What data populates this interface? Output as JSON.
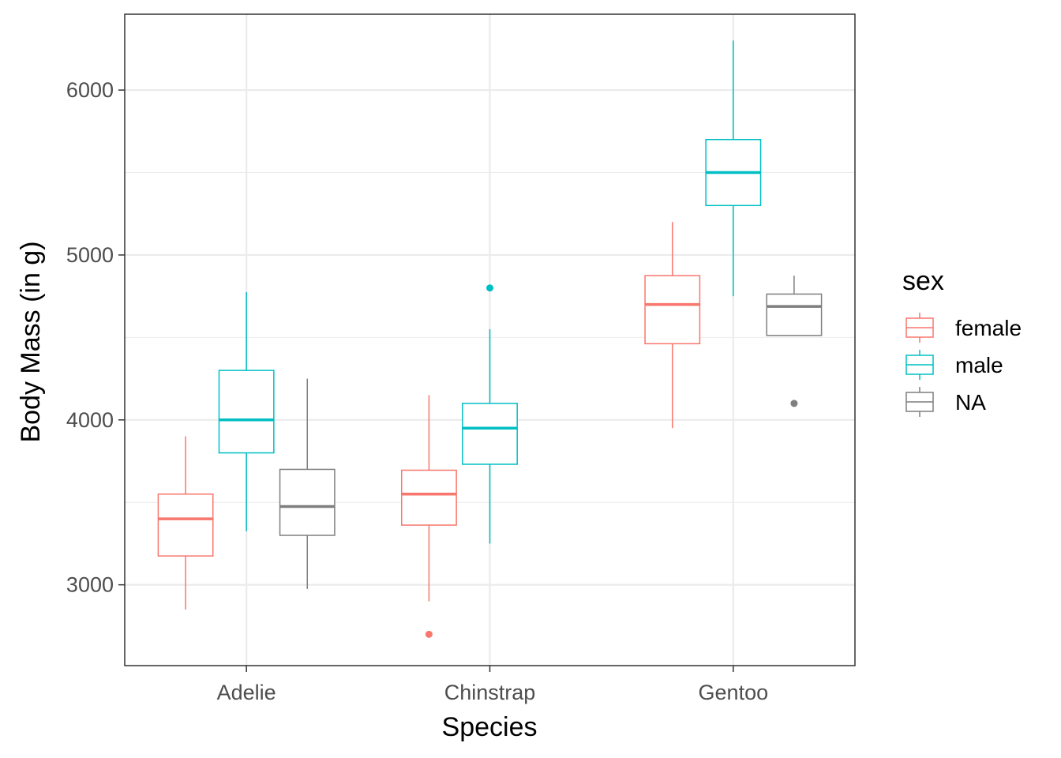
{
  "chart_data": {
    "type": "boxplot",
    "xlabel": "Species",
    "ylabel": "Body Mass (in g)",
    "categories": [
      "Adelie",
      "Chinstrap",
      "Gentoo"
    ],
    "ylim": [
      2510,
      6460
    ],
    "y_ticks": [
      3000,
      4000,
      5000,
      6000
    ],
    "y_tick_labels": [
      "3000",
      "4000",
      "5000",
      "6000"
    ],
    "grid": true,
    "legend": {
      "title": "sex",
      "position": "right",
      "entries": [
        "female",
        "male",
        "NA"
      ]
    },
    "series": [
      {
        "name": "female",
        "color": "#F8766D",
        "boxes": [
          {
            "category": "Adelie",
            "min": 2850,
            "q1": 3175,
            "median": 3400,
            "q3": 3550,
            "max": 3900,
            "outliers": []
          },
          {
            "category": "Chinstrap",
            "min": 2900,
            "q1": 3362,
            "median": 3550,
            "q3": 3695,
            "max": 4150,
            "outliers": [
              2700
            ]
          },
          {
            "category": "Gentoo",
            "min": 3950,
            "q1": 4462,
            "median": 4700,
            "q3": 4875,
            "max": 5200,
            "outliers": []
          }
        ]
      },
      {
        "name": "male",
        "color": "#00BFC4",
        "boxes": [
          {
            "category": "Adelie",
            "min": 3325,
            "q1": 3800,
            "median": 4000,
            "q3": 4300,
            "max": 4775,
            "outliers": []
          },
          {
            "category": "Chinstrap",
            "min": 3250,
            "q1": 3731,
            "median": 3950,
            "q3": 4100,
            "max": 4550,
            "outliers": [
              4800
            ]
          },
          {
            "category": "Gentoo",
            "min": 4750,
            "q1": 5300,
            "median": 5500,
            "q3": 5700,
            "max": 6300,
            "outliers": []
          }
        ]
      },
      {
        "name": "NA",
        "color": "#7F7F7F",
        "boxes": [
          {
            "category": "Adelie",
            "min": 2975,
            "q1": 3300,
            "median": 3475,
            "q3": 3700,
            "max": 4250,
            "outliers": []
          },
          {
            "category": "Gentoo",
            "min": 4512,
            "q1": 4512,
            "median": 4688,
            "q3": 4763,
            "max": 4875,
            "outliers": [
              4100
            ]
          }
        ]
      }
    ]
  }
}
